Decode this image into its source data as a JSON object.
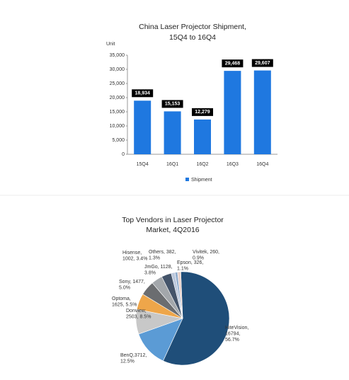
{
  "chart_data": [
    {
      "type": "bar",
      "title": [
        "China Laser Projector Shipment,",
        "15Q4 to 16Q4"
      ],
      "y_label": "Unit",
      "categories": [
        "15Q4",
        "16Q1",
        "16Q2",
        "16Q3",
        "16Q4"
      ],
      "series": [
        {
          "name": "Shipment",
          "color": "#1f78e0",
          "values": [
            18934,
            15153,
            12279,
            29468,
            29607
          ],
          "value_labels": [
            "18,934",
            "15,153",
            "12,279",
            "29,468",
            "29,607"
          ]
        }
      ],
      "ylim": [
        0,
        35000
      ],
      "yticks": [
        0,
        {
          "value": 5000,
          "label": "5,000"
        },
        {
          "value": 10000,
          "label": "10,000"
        },
        {
          "value": 15000,
          "label": "15,000"
        },
        {
          "value": 20000,
          "label": "20,000"
        },
        {
          "value": 25000,
          "label": "25,000"
        },
        {
          "value": 30000,
          "label": "30,000"
        },
        {
          "value": 35000,
          "label": "35,000"
        }
      ],
      "legend": "bottom"
    },
    {
      "type": "pie",
      "title": [
        "Top Vendors in Laser Projector",
        "Market, 4Q2016"
      ],
      "values": [
        16794,
        3712,
        2503,
        1625,
        1477,
        1128,
        1002,
        382,
        260,
        326
      ],
      "value_labels": [
        [
          "HiteVision,",
          "16794,",
          "56.7%"
        ],
        [
          "BenQ,3712,",
          "12.5%"
        ],
        [
          "Donview,",
          "2503, 8.5%"
        ],
        [
          "Optoma,",
          "1625, 5.5%"
        ],
        [
          "Sony, 1477,",
          "5.0%"
        ],
        [
          "JmGo, 1128,",
          "3.8%"
        ],
        [
          "Hisense,",
          "1002, 3.4%"
        ],
        [
          "Others, 382,",
          "1.3%"
        ],
        [
          "Vivitek, 260,",
          "0.9%"
        ],
        [
          "Epson, 326,",
          "1.1%"
        ]
      ],
      "colors": [
        "#1f4e79",
        "#5b9bd5",
        "#c8c8c8",
        "#eea64a",
        "#6b6d70",
        "#a3a7ab",
        "#44546a",
        "#bcc8dc",
        "#8eaacb",
        "#e9d2cb"
      ]
    }
  ]
}
